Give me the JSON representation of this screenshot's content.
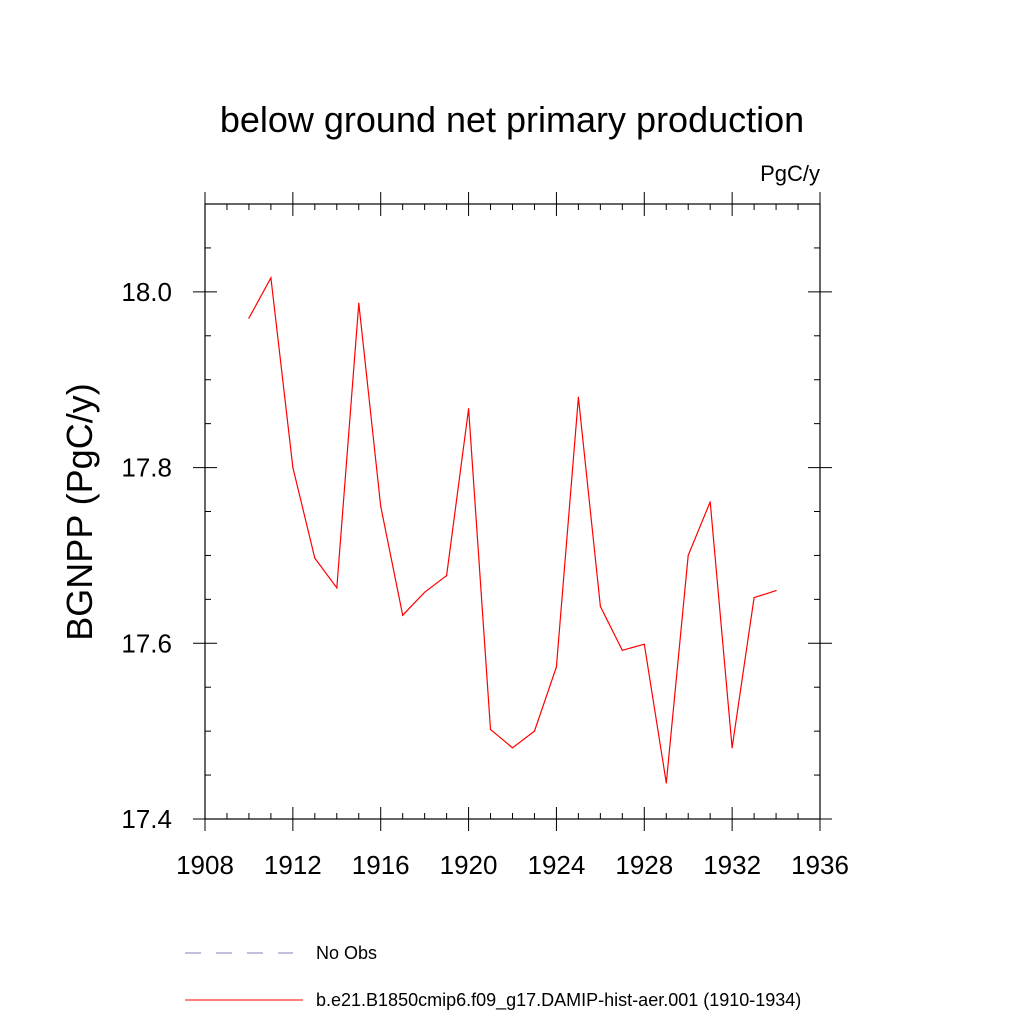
{
  "chart_data": {
    "type": "line",
    "title": "below ground net primary production",
    "units": "PgC/y",
    "ylabel": "BGNPP  (PgC/y)",
    "xlabel": "",
    "xlim": [
      1908,
      1936
    ],
    "ylim": [
      17.4,
      18.1
    ],
    "xticks": [
      "1908",
      "1912",
      "1916",
      "1920",
      "1924",
      "1928",
      "1932",
      "1936"
    ],
    "yticks": [
      "17.4",
      "17.6",
      "17.8",
      "18.0"
    ],
    "grid": false,
    "legend_position": "bottom",
    "series": [
      {
        "name": "No Obs",
        "color": "#8080c0",
        "style": "dashed",
        "x": [],
        "values": []
      },
      {
        "name": "b.e21.B1850cmip6.f09_g17.DAMIP-hist-aer.001 (1910-1934)",
        "color": "#ff0000",
        "style": "solid",
        "x": [
          1910,
          1911,
          1912,
          1913,
          1914,
          1915,
          1916,
          1917,
          1918,
          1919,
          1920,
          1921,
          1922,
          1923,
          1924,
          1925,
          1926,
          1927,
          1928,
          1929,
          1930,
          1931,
          1932,
          1933,
          1934
        ],
        "values": [
          17.97,
          18.016,
          17.8,
          17.697,
          17.663,
          17.987,
          17.756,
          17.632,
          17.658,
          17.677,
          17.867,
          17.502,
          17.481,
          17.5,
          17.573,
          17.88,
          17.642,
          17.592,
          17.599,
          17.441,
          17.7,
          17.761,
          17.481,
          17.652,
          17.66
        ]
      }
    ]
  }
}
